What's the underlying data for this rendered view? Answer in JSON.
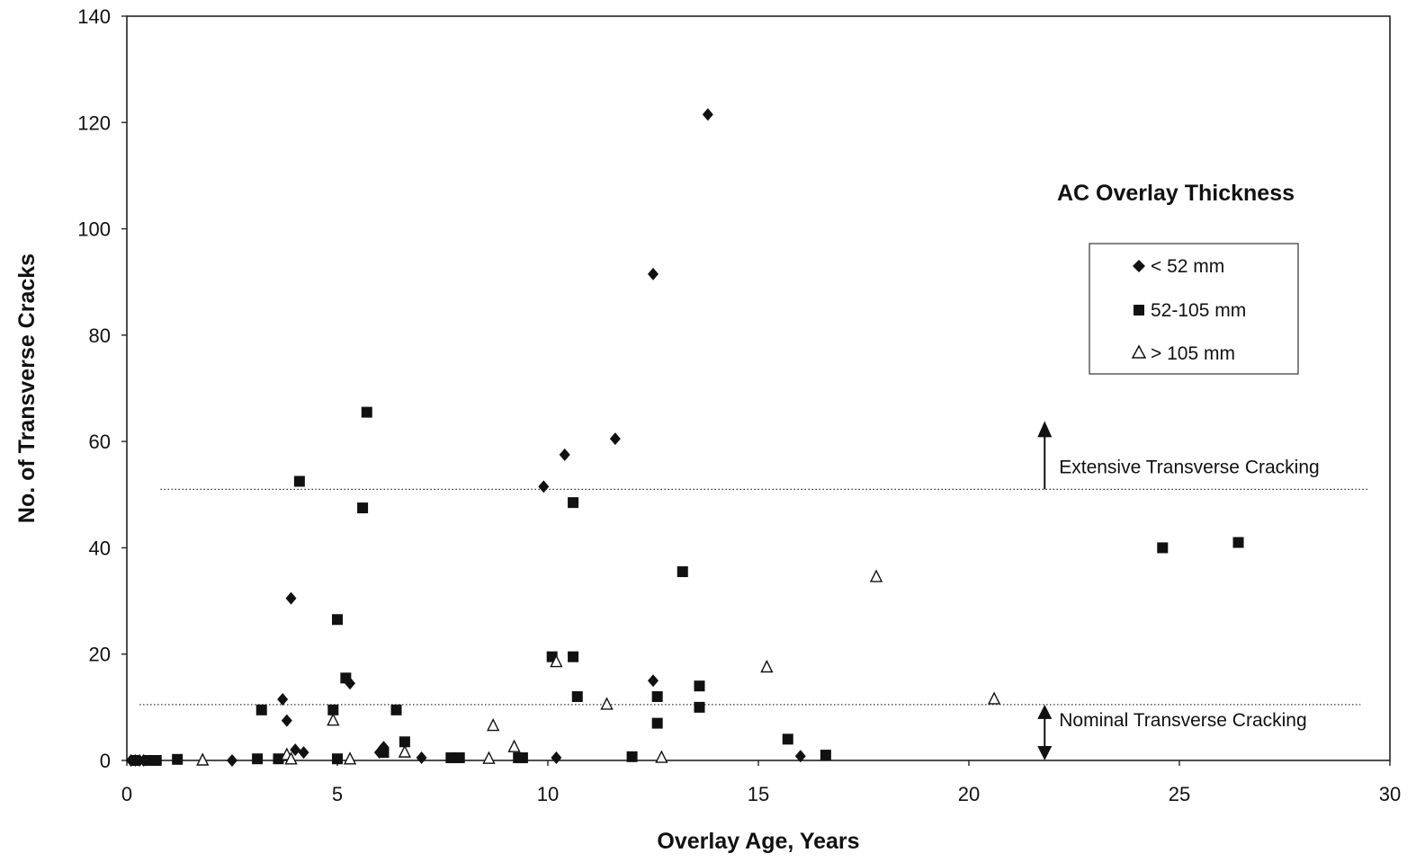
{
  "chart_data": {
    "type": "scatter",
    "title": "",
    "xlabel": "Overlay Age, Years",
    "ylabel": "No. of Transverse Cracks",
    "xlim": [
      0,
      30
    ],
    "ylim": [
      0,
      140
    ],
    "xticks": [
      0,
      5,
      10,
      15,
      20,
      25,
      30
    ],
    "yticks": [
      0,
      20,
      40,
      60,
      80,
      100,
      120,
      140
    ],
    "grid": false,
    "legend_title": "AC Overlay Thickness",
    "legend_position": "right",
    "series": [
      {
        "name": "< 52 mm",
        "marker": "diamond",
        "points": [
          [
            0.1,
            0
          ],
          [
            0.2,
            0
          ],
          [
            0.3,
            0
          ],
          [
            0.4,
            0
          ],
          [
            2.5,
            0
          ],
          [
            3.7,
            11.5
          ],
          [
            3.8,
            7.5
          ],
          [
            3.9,
            30.5
          ],
          [
            4.0,
            2.0
          ],
          [
            4.2,
            1.5
          ],
          [
            5.3,
            14.5
          ],
          [
            6.0,
            1.5
          ],
          [
            6.1,
            2.5
          ],
          [
            7.0,
            0.5
          ],
          [
            9.9,
            51.5
          ],
          [
            10.2,
            0.5
          ],
          [
            10.4,
            57.5
          ],
          [
            11.6,
            60.5
          ],
          [
            12.5,
            91.5
          ],
          [
            12.5,
            15.0
          ],
          [
            13.8,
            121.5
          ],
          [
            16.0,
            0.8
          ]
        ]
      },
      {
        "name": "52-105 mm",
        "marker": "square",
        "points": [
          [
            0.2,
            0
          ],
          [
            0.5,
            0
          ],
          [
            0.7,
            0
          ],
          [
            1.2,
            0.2
          ],
          [
            3.1,
            0.3
          ],
          [
            3.2,
            9.5
          ],
          [
            3.6,
            0.3
          ],
          [
            4.1,
            52.5
          ],
          [
            4.9,
            9.5
          ],
          [
            5.0,
            26.5
          ],
          [
            5.0,
            0.3
          ],
          [
            5.2,
            15.5
          ],
          [
            5.6,
            47.5
          ],
          [
            5.7,
            65.5
          ],
          [
            6.1,
            1.5
          ],
          [
            6.4,
            9.5
          ],
          [
            6.6,
            3.5
          ],
          [
            7.7,
            0.5
          ],
          [
            7.9,
            0.5
          ],
          [
            9.3,
            0.5
          ],
          [
            9.4,
            0.5
          ],
          [
            10.1,
            19.5
          ],
          [
            10.6,
            19.5
          ],
          [
            10.6,
            48.5
          ],
          [
            10.7,
            12.0
          ],
          [
            12.0,
            0.7
          ],
          [
            12.6,
            12.0
          ],
          [
            12.6,
            7.0
          ],
          [
            13.2,
            35.5
          ],
          [
            13.6,
            10.0
          ],
          [
            13.6,
            14.0
          ],
          [
            15.7,
            4.0
          ],
          [
            16.6,
            1.0
          ],
          [
            24.6,
            40.0
          ],
          [
            26.4,
            41.0
          ]
        ]
      },
      {
        "name": "> 105 mm",
        "marker": "triangle",
        "points": [
          [
            1.8,
            0
          ],
          [
            3.8,
            1.0
          ],
          [
            3.9,
            0.2
          ],
          [
            4.9,
            7.5
          ],
          [
            5.3,
            0.2
          ],
          [
            6.6,
            1.5
          ],
          [
            8.6,
            0.3
          ],
          [
            8.7,
            6.5
          ],
          [
            9.2,
            2.5
          ],
          [
            10.2,
            18.5
          ],
          [
            11.4,
            10.5
          ],
          [
            12.7,
            0.5
          ],
          [
            15.2,
            17.5
          ],
          [
            17.8,
            34.5
          ],
          [
            20.6,
            11.5
          ]
        ]
      }
    ],
    "reference_lines": [
      {
        "y": 51,
        "x_range": [
          0.8,
          29.5
        ],
        "style": "dotted",
        "label": "Extensive Transverse Cracking",
        "arrow": "up",
        "arrow_x": 21.8
      },
      {
        "y": 10.5,
        "x_range": [
          0.3,
          29.3
        ],
        "style": "dotted",
        "label": "Nominal Transverse Cracking",
        "arrow": "both",
        "arrow_x": 21.8
      }
    ]
  }
}
